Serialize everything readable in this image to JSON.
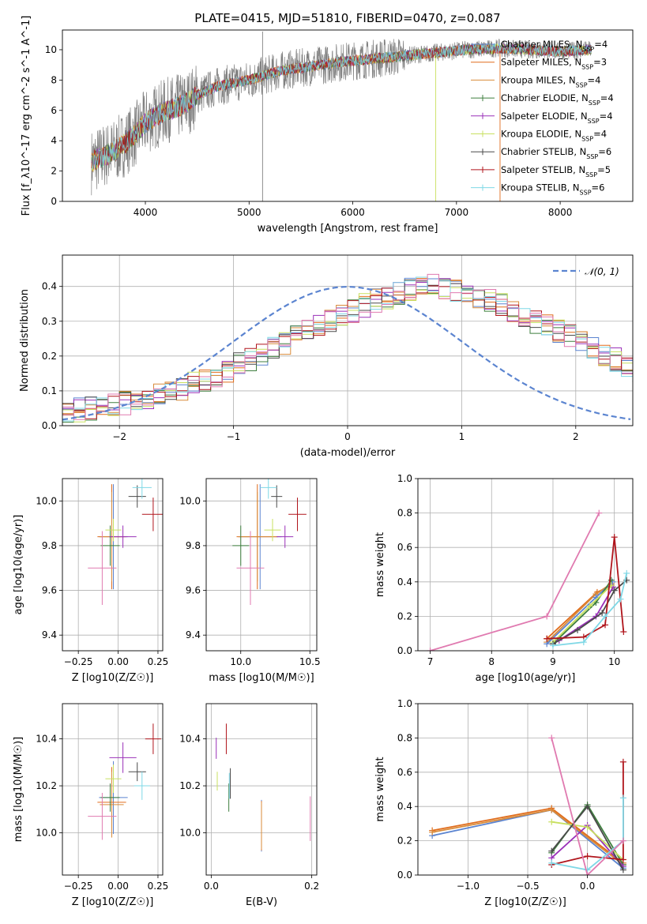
{
  "figure": {
    "title": "PLATE=0415, MJD=51810, FIBERID=0470, z=0.087"
  },
  "colors": {
    "chabrier_miles": "#5b84d0",
    "salpeter_miles": "#e06c1c",
    "kroupa_miles": "#d98b3a",
    "chabrier_elodie": "#3f7f3f",
    "salpeter_elodie": "#9a30b8",
    "kroupa_elodie": "#c8e060",
    "chabrier_stelib": "#4a4a4a",
    "salpeter_stelib": "#b0151c",
    "kroupa_stelib": "#7fd8e6",
    "pink": "#e07ab0",
    "data": "#808080"
  },
  "chart_data": [
    {
      "type": "line",
      "id": "spectrum",
      "title": "PLATE=0415, MJD=51810, FIBERID=0470, z=0.087",
      "xlabel": "wavelength [Angstrom, rest frame]",
      "ylabel": "Flux [f_λ10^-17 erg cm^-2 s^-1 A^-1]",
      "xlim": [
        3200,
        8700
      ],
      "ylim": [
        0,
        11.3
      ],
      "xticks": [
        4000,
        5000,
        6000,
        7000,
        8000
      ],
      "yticks": [
        0,
        2,
        4,
        6,
        8,
        10
      ],
      "grid": false,
      "legend_position": "top-right",
      "continuum": {
        "x": [
          3480,
          3600,
          3700,
          3800,
          3900,
          4000,
          4100,
          4200,
          4300,
          4400,
          4500,
          4700,
          5000,
          5300,
          5600,
          5900,
          6200,
          6500,
          6800,
          7100,
          7400,
          7700,
          8000,
          8300
        ],
        "y": [
          2.6,
          3.0,
          3.3,
          3.8,
          4.4,
          5.2,
          5.6,
          6.0,
          6.2,
          6.5,
          7.0,
          7.6,
          8.0,
          8.6,
          8.9,
          9.2,
          9.4,
          9.6,
          9.8,
          10.0,
          10.1,
          10.0,
          9.9,
          10.0
        ]
      },
      "series": [
        {
          "name": "Chabrier MILES",
          "nssp": "4",
          "color_key": "chabrier_miles",
          "marker": "line"
        },
        {
          "name": "Salpeter MILES",
          "nssp": "3",
          "color_key": "salpeter_miles",
          "marker": "line"
        },
        {
          "name": "Kroupa MILES",
          "nssp": "4",
          "color_key": "kroupa_miles",
          "marker": "line"
        },
        {
          "name": "Chabrier ELODIE",
          "nssp": "4",
          "color_key": "chabrier_elodie",
          "marker": "plus"
        },
        {
          "name": "Salpeter ELODIE",
          "nssp": "4",
          "color_key": "salpeter_elodie",
          "marker": "plus"
        },
        {
          "name": "Kroupa ELODIE",
          "nssp": "4",
          "color_key": "kroupa_elodie",
          "marker": "plus"
        },
        {
          "name": "Chabrier STELIB",
          "nssp": "6",
          "color_key": "chabrier_stelib",
          "marker": "plus"
        },
        {
          "name": "Salpeter STELIB",
          "nssp": "5",
          "color_key": "salpeter_stelib",
          "marker": "plus"
        },
        {
          "name": "Kroupa STELIB",
          "nssp": "6",
          "color_key": "kroupa_stelib",
          "marker": "plus"
        }
      ]
    },
    {
      "type": "bar",
      "id": "residuals",
      "xlabel": "(data-model)/error",
      "ylabel": "Normed distribution",
      "xlim": [
        -2.5,
        2.5
      ],
      "ylim": [
        0,
        0.49
      ],
      "xticks": [
        -2,
        -1,
        0,
        1,
        2
      ],
      "yticks": [
        0.0,
        0.1,
        0.2,
        0.3,
        0.4
      ],
      "grid": true,
      "legend": "𝒩(0, 1)",
      "legend_position": "top-right",
      "bin_width": 0.1,
      "bins_from": -2.5,
      "base_hist": [
        0.04,
        0.045,
        0.05,
        0.055,
        0.06,
        0.065,
        0.07,
        0.075,
        0.085,
        0.095,
        0.105,
        0.12,
        0.13,
        0.145,
        0.16,
        0.175,
        0.19,
        0.205,
        0.22,
        0.24,
        0.255,
        0.27,
        0.285,
        0.3,
        0.315,
        0.33,
        0.345,
        0.36,
        0.37,
        0.38,
        0.39,
        0.395,
        0.4,
        0.395,
        0.39,
        0.38,
        0.37,
        0.36,
        0.345,
        0.33,
        0.315,
        0.3,
        0.285,
        0.27,
        0.255,
        0.24,
        0.22,
        0.205,
        0.19,
        0.175,
        0.16,
        0.145,
        0.13,
        0.12,
        0.105,
        0.095,
        0.085,
        0.075,
        0.07,
        0.06,
        0.055,
        0.05,
        0.045,
        0.04,
        0.035,
        0.03,
        0.028,
        0.025,
        0.022,
        0.02,
        0.02,
        0.02,
        0.02,
        0.02,
        0.02,
        0.02,
        0.02,
        0.02,
        0.02,
        0.02
      ],
      "gaussian": {
        "mean": 0,
        "sigma": 1
      }
    },
    {
      "type": "scatter",
      "id": "age-vs-Z",
      "xlabel": "Z [log10(Z/Z☉)]",
      "ylabel": "age [log10(age/yr)]",
      "xlim": [
        -0.35,
        0.28
      ],
      "ylim": [
        9.33,
        10.1
      ],
      "xticks": [
        -0.25,
        0.0,
        0.25
      ],
      "yticks": [
        9.4,
        9.6,
        9.8,
        10.0
      ],
      "grid": true,
      "points": [
        {
          "c": "chabrier_miles",
          "x": -0.03,
          "y": 9.84,
          "xe": 0.18,
          "ye": 0.47
        },
        {
          "c": "salpeter_miles",
          "x": -0.04,
          "y": 9.84,
          "xe": 0.18,
          "ye": 0.47
        },
        {
          "c": "kroupa_miles",
          "x": -0.04,
          "y": 9.84,
          "xe": 0.15,
          "ye": 0.4
        },
        {
          "c": "chabrier_elodie",
          "x": -0.05,
          "y": 9.8,
          "xe": 0.12,
          "ye": 0.18
        },
        {
          "c": "salpeter_elodie",
          "x": 0.03,
          "y": 9.84,
          "xe": 0.17,
          "ye": 0.1
        },
        {
          "c": "kroupa_elodie",
          "x": -0.03,
          "y": 9.87,
          "xe": 0.1,
          "ye": 0.1
        },
        {
          "c": "chabrier_stelib",
          "x": 0.12,
          "y": 10.02,
          "xe": 0.11,
          "ye": 0.1
        },
        {
          "c": "salpeter_stelib",
          "x": 0.22,
          "y": 9.94,
          "xe": 0.14,
          "ye": 0.15
        },
        {
          "c": "kroupa_stelib",
          "x": 0.15,
          "y": 10.06,
          "xe": 0.12,
          "ye": 0.1
        },
        {
          "c": "pink",
          "x": -0.1,
          "y": 9.7,
          "xe": 0.18,
          "ye": 0.33
        }
      ]
    },
    {
      "type": "scatter",
      "id": "age-vs-mass",
      "xlabel": "mass [log10(M/M☉)]",
      "ylabel": "",
      "xlim": [
        9.75,
        10.55
      ],
      "ylim": [
        9.33,
        10.1
      ],
      "xticks": [
        10.0,
        10.5
      ],
      "yticks": [
        9.4,
        9.6,
        9.8,
        10.0
      ],
      "grid": true,
      "points": [
        {
          "c": "chabrier_miles",
          "x": 10.14,
          "y": 9.84,
          "xe": 0.31,
          "ye": 0.47
        },
        {
          "c": "salpeter_miles",
          "x": 10.12,
          "y": 9.84,
          "xe": 0.3,
          "ye": 0.47
        },
        {
          "c": "kroupa_miles",
          "x": 10.12,
          "y": 9.84,
          "xe": 0.28,
          "ye": 0.4
        },
        {
          "c": "chabrier_elodie",
          "x": 10.0,
          "y": 9.8,
          "xe": 0.12,
          "ye": 0.18
        },
        {
          "c": "salpeter_elodie",
          "x": 10.32,
          "y": 9.84,
          "xe": 0.12,
          "ye": 0.1
        },
        {
          "c": "kroupa_elodie",
          "x": 10.23,
          "y": 9.87,
          "xe": 0.12,
          "ye": 0.1
        },
        {
          "c": "chabrier_stelib",
          "x": 10.26,
          "y": 10.02,
          "xe": 0.08,
          "ye": 0.1
        },
        {
          "c": "salpeter_stelib",
          "x": 10.41,
          "y": 9.94,
          "xe": 0.13,
          "ye": 0.15
        },
        {
          "c": "kroupa_stelib",
          "x": 10.2,
          "y": 10.06,
          "xe": 0.12,
          "ye": 0.1
        },
        {
          "c": "pink",
          "x": 10.07,
          "y": 9.7,
          "xe": 0.2,
          "ye": 0.33
        }
      ]
    },
    {
      "type": "line",
      "id": "weight-vs-age",
      "xlabel": "age [log10(age/yr)]",
      "ylabel": "mass weight",
      "xlim": [
        6.8,
        10.3
      ],
      "ylim": [
        0.0,
        1.0
      ],
      "xticks": [
        7,
        8,
        9,
        10
      ],
      "yticks": [
        0.0,
        0.2,
        0.4,
        0.6,
        0.8,
        1.0
      ],
      "grid": true,
      "series": [
        {
          "c": "pink",
          "x": [
            7.0,
            8.9,
            9.75
          ],
          "y": [
            0.0,
            0.2,
            0.8
          ]
        },
        {
          "c": "salpeter_miles",
          "x": [
            8.9,
            9.72,
            9.95
          ],
          "y": [
            0.07,
            0.34,
            0.38
          ]
        },
        {
          "c": "kroupa_miles",
          "x": [
            8.9,
            9.7,
            9.95
          ],
          "y": [
            0.05,
            0.33,
            0.39
          ]
        },
        {
          "c": "chabrier_miles",
          "x": [
            8.9,
            9.7,
            9.97
          ],
          "y": [
            0.04,
            0.31,
            0.4
          ]
        },
        {
          "c": "chabrier_elodie",
          "x": [
            9.0,
            9.7,
            9.95
          ],
          "y": [
            0.04,
            0.28,
            0.41
          ]
        },
        {
          "c": "salpeter_elodie",
          "x": [
            9.1,
            9.7,
            9.98
          ],
          "y": [
            0.06,
            0.2,
            0.37
          ]
        },
        {
          "c": "kroupa_elodie",
          "x": [
            9.0,
            9.6,
            9.95
          ],
          "y": [
            0.05,
            0.26,
            0.38
          ]
        },
        {
          "c": "chabrier_stelib",
          "x": [
            9.0,
            9.4,
            9.8,
            10.0,
            10.2
          ],
          "y": [
            0.04,
            0.12,
            0.22,
            0.35,
            0.41
          ]
        },
        {
          "c": "salpeter_stelib",
          "x": [
            8.9,
            9.5,
            9.85,
            10.0,
            10.15
          ],
          "y": [
            0.07,
            0.08,
            0.15,
            0.66,
            0.11
          ]
        },
        {
          "c": "kroupa_stelib",
          "x": [
            9.0,
            9.5,
            9.85,
            10.1,
            10.2
          ],
          "y": [
            0.03,
            0.05,
            0.2,
            0.3,
            0.45
          ]
        }
      ]
    },
    {
      "type": "scatter",
      "id": "mass-vs-Z",
      "xlabel": "Z [log10(Z/Z☉)]",
      "ylabel": "mass [log10(M/M☉)]",
      "xlim": [
        -0.35,
        0.28
      ],
      "ylim": [
        9.82,
        10.55
      ],
      "xticks": [
        -0.25,
        0.0,
        0.25
      ],
      "yticks": [
        10.0,
        10.2,
        10.4
      ],
      "grid": true,
      "points": [
        {
          "c": "chabrier_miles",
          "x": -0.03,
          "y": 10.15,
          "xe": 0.18,
          "ye": 0.31
        },
        {
          "c": "salpeter_miles",
          "x": -0.04,
          "y": 10.13,
          "xe": 0.18,
          "ye": 0.3
        },
        {
          "c": "kroupa_miles",
          "x": -0.04,
          "y": 10.12,
          "xe": 0.15,
          "ye": 0.28
        },
        {
          "c": "chabrier_elodie",
          "x": -0.05,
          "y": 10.15,
          "xe": 0.12,
          "ye": 0.12
        },
        {
          "c": "salpeter_elodie",
          "x": 0.03,
          "y": 10.32,
          "xe": 0.17,
          "ye": 0.13
        },
        {
          "c": "kroupa_elodie",
          "x": -0.03,
          "y": 10.23,
          "xe": 0.1,
          "ye": 0.12
        },
        {
          "c": "chabrier_stelib",
          "x": 0.12,
          "y": 10.26,
          "xe": 0.11,
          "ye": 0.08
        },
        {
          "c": "salpeter_stelib",
          "x": 0.22,
          "y": 10.4,
          "xe": 0.1,
          "ye": 0.13
        },
        {
          "c": "kroupa_stelib",
          "x": 0.15,
          "y": 10.2,
          "xe": 0.1,
          "ye": 0.12
        },
        {
          "c": "pink",
          "x": -0.1,
          "y": 10.07,
          "xe": 0.18,
          "ye": 0.2
        }
      ]
    },
    {
      "type": "scatter",
      "id": "mass-vs-EBV",
      "xlabel": "E(B-V)",
      "ylabel": "",
      "xlim": [
        -0.01,
        0.21
      ],
      "ylim": [
        9.82,
        10.55
      ],
      "xticks": [
        0.0,
        0.2
      ],
      "yticks": [
        10.0,
        10.2,
        10.4
      ],
      "grid": true,
      "points": [
        {
          "c": "chabrier_miles",
          "x": 0.1,
          "y": 10.03,
          "xe": 0,
          "ye": 0.22
        },
        {
          "c": "salpeter_miles",
          "x": 0.1,
          "y": 10.03,
          "xe": 0,
          "ye": 0.21
        },
        {
          "c": "kroupa_miles",
          "x": 0.1,
          "y": 10.03,
          "xe": 0,
          "ye": 0.2
        },
        {
          "c": "chabrier_elodie",
          "x": 0.035,
          "y": 10.15,
          "xe": 0,
          "ye": 0.12
        },
        {
          "c": "salpeter_elodie",
          "x": 0.01,
          "y": 10.36,
          "xe": 0,
          "ye": 0.09
        },
        {
          "c": "kroupa_elodie",
          "x": 0.012,
          "y": 10.22,
          "xe": 0,
          "ye": 0.08
        },
        {
          "c": "chabrier_stelib",
          "x": 0.038,
          "y": 10.21,
          "xe": 0,
          "ye": 0.13
        },
        {
          "c": "salpeter_stelib",
          "x": 0.03,
          "y": 10.4,
          "xe": 0,
          "ye": 0.13
        },
        {
          "c": "kroupa_stelib",
          "x": 0.036,
          "y": 10.2,
          "xe": 0,
          "ye": 0.11
        },
        {
          "c": "pink",
          "x": 0.197,
          "y": 10.06,
          "xe": 0,
          "ye": 0.19
        }
      ]
    },
    {
      "type": "line",
      "id": "weight-vs-Z",
      "xlabel": "Z [log10(Z/Z☉)]",
      "ylabel": "mass weight",
      "xlim": [
        -1.42,
        0.38
      ],
      "ylim": [
        0.0,
        1.0
      ],
      "xticks": [
        -1.0,
        -0.5,
        0.0
      ],
      "yticks": [
        0.0,
        0.2,
        0.4,
        0.6,
        0.8,
        1.0
      ],
      "grid": true,
      "series": [
        {
          "c": "chabrier_miles",
          "x": [
            -1.3,
            -0.3,
            0.3
          ],
          "y": [
            0.23,
            0.38,
            0.04
          ]
        },
        {
          "c": "salpeter_miles",
          "x": [
            -1.3,
            -0.3,
            0.3
          ],
          "y": [
            0.26,
            0.39,
            0.07
          ]
        },
        {
          "c": "kroupa_miles",
          "x": [
            -1.3,
            -0.3,
            0.3
          ],
          "y": [
            0.25,
            0.38,
            0.06
          ]
        },
        {
          "c": "chabrier_elodie",
          "x": [
            -0.3,
            0.0,
            0.3
          ],
          "y": [
            0.13,
            0.41,
            0.06
          ]
        },
        {
          "c": "salpeter_elodie",
          "x": [
            -0.3,
            0.0,
            0.3
          ],
          "y": [
            0.1,
            0.29,
            0.05
          ]
        },
        {
          "c": "kroupa_elodie",
          "x": [
            -0.3,
            0.0,
            0.3
          ],
          "y": [
            0.31,
            0.28,
            0.09
          ]
        },
        {
          "c": "chabrier_stelib",
          "x": [
            -0.3,
            0.0,
            0.3
          ],
          "y": [
            0.14,
            0.4,
            0.03
          ]
        },
        {
          "c": "salpeter_stelib",
          "x": [
            -0.3,
            0.0,
            0.3,
            0.3
          ],
          "y": [
            0.06,
            0.11,
            0.09,
            0.66
          ]
        },
        {
          "c": "kroupa_stelib",
          "x": [
            -0.3,
            0.0,
            0.3,
            0.3
          ],
          "y": [
            0.07,
            0.03,
            0.2,
            0.45
          ]
        },
        {
          "c": "pink",
          "x": [
            -0.3,
            0.0,
            0.3
          ],
          "y": [
            0.8,
            0.0,
            0.2
          ]
        }
      ]
    }
  ]
}
